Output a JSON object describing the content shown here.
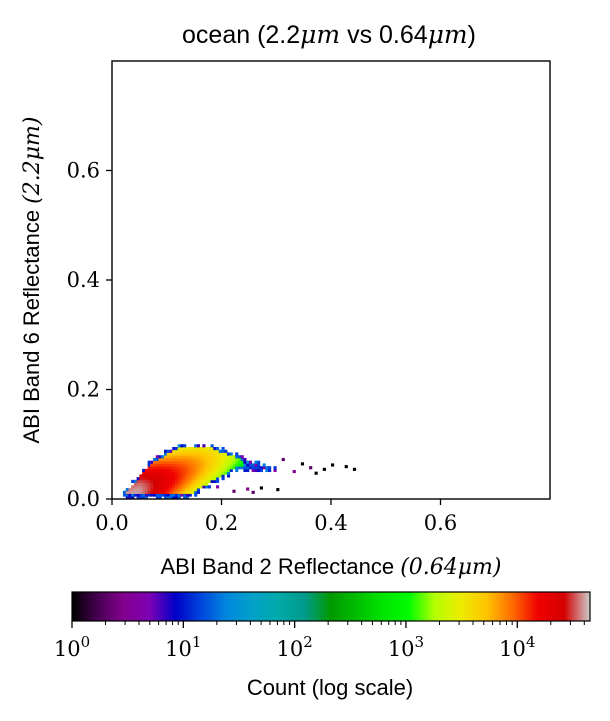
{
  "chart_data": {
    "type": "heatmap",
    "title_prefix": "ocean (2.2",
    "title_unit1": "μm",
    "title_mid": " vs 0.64",
    "title_unit2": "μm",
    "title_suffix": ")",
    "xlabel_prefix": "ABI Band 2 Reflectance ",
    "xlabel_math": "(0.64μm)",
    "ylabel_prefix": "ABI Band 6 Reflectance ",
    "ylabel_math": "(2.2μm)",
    "xlim": [
      0.0,
      0.8
    ],
    "ylim": [
      0.0,
      0.8
    ],
    "xticks": [
      0.0,
      0.2,
      0.4,
      0.6
    ],
    "yticks": [
      0.0,
      0.2,
      0.4,
      0.6
    ],
    "xtick_labels": [
      "0.0",
      "0.2",
      "0.4",
      "0.6"
    ],
    "ytick_labels": [
      "0.0",
      "0.2",
      "0.4",
      "0.6"
    ],
    "grid": false,
    "colormap": "nipy_spectral",
    "colorbar": {
      "label": "Count (log scale)",
      "scale": "log",
      "range": [
        1,
        45000
      ],
      "tick_labels": [
        {
          "base": "10",
          "exp": "0",
          "value": 1
        },
        {
          "base": "10",
          "exp": "1",
          "value": 10
        },
        {
          "base": "10",
          "exp": "2",
          "value": 100
        },
        {
          "base": "10",
          "exp": "3",
          "value": 1000
        },
        {
          "base": "10",
          "exp": "4",
          "value": 10000
        }
      ]
    },
    "density_description": {
      "peak": {
        "x": 0.045,
        "y": 0.012,
        "count": 40000
      },
      "main_body_x_range": [
        0.03,
        0.33
      ],
      "main_body_y_range": [
        0.0,
        0.105
      ],
      "outlier_x_max": 0.45
    }
  }
}
